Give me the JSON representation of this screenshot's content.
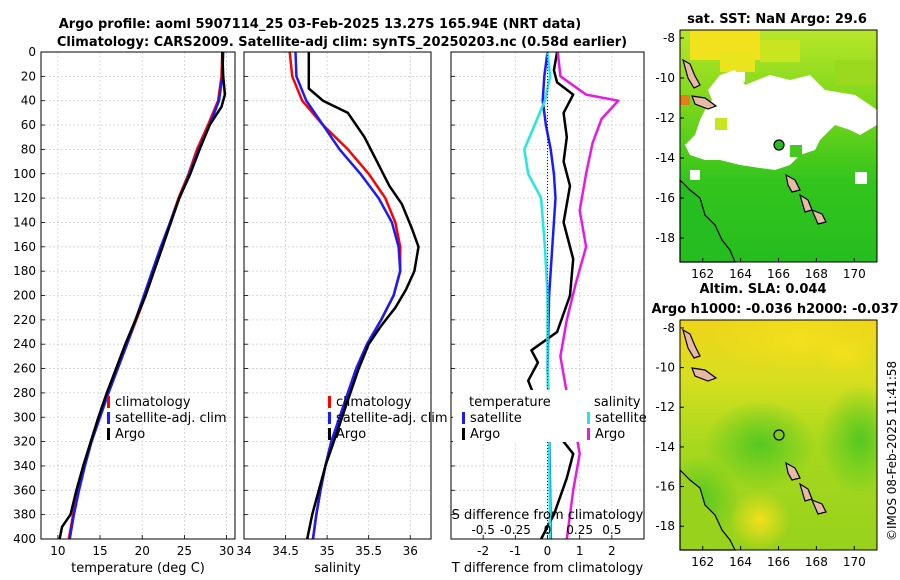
{
  "header": {
    "title_line1": "Argo profile: aoml 5907114_25 03-Feb-2025 13.27S 165.94E (NRT data)",
    "title_line2": "Climatology: CARS2009. Satellite-adj clim: synTS_20250203.nc (0.58d earlier)"
  },
  "watermark": "©IMOS 08-Feb-2025 11:41:58",
  "colors": {
    "clim": "#ff0000",
    "sat": "#1a1aff",
    "argo": "#000000",
    "sat_s": "#22e6e6",
    "argo_s": "#e619e6",
    "land": "#e8b9a3"
  },
  "chart_data": [
    {
      "type": "line",
      "panel": "temperature",
      "xlabel": "temperature (deg C)",
      "ylabel": "",
      "xlim": [
        8,
        31
      ],
      "ylim": [
        400,
        0
      ],
      "xticks": [
        10,
        15,
        20,
        25,
        30
      ],
      "yticks": [
        0,
        20,
        40,
        60,
        80,
        100,
        120,
        140,
        160,
        180,
        200,
        220,
        240,
        260,
        280,
        300,
        320,
        340,
        360,
        380,
        400
      ],
      "legend": [
        "climatology",
        "satellite-adj. clim",
        "Argo"
      ],
      "series": [
        {
          "name": "climatology",
          "color": "#ff0000",
          "points": [
            [
              29.5,
              0
            ],
            [
              29.4,
              20
            ],
            [
              29.0,
              40
            ],
            [
              27.8,
              60
            ],
            [
              26.5,
              80
            ],
            [
              25.5,
              100
            ],
            [
              24.3,
              120
            ],
            [
              23.3,
              140
            ],
            [
              22.4,
              160
            ],
            [
              21.4,
              180
            ],
            [
              20.4,
              200
            ],
            [
              19.3,
              220
            ],
            [
              18.2,
              240
            ],
            [
              17.0,
              260
            ],
            [
              15.9,
              280
            ],
            [
              14.9,
              300
            ],
            [
              13.9,
              320
            ],
            [
              13.1,
              340
            ],
            [
              12.4,
              360
            ],
            [
              11.8,
              380
            ],
            [
              11.3,
              400
            ]
          ]
        },
        {
          "name": "satellite-adj. clim",
          "color": "#1a1aff",
          "points": [
            [
              29.6,
              0
            ],
            [
              29.5,
              20
            ],
            [
              29.1,
              40
            ],
            [
              28.0,
              60
            ],
            [
              26.7,
              80
            ],
            [
              25.6,
              100
            ],
            [
              24.4,
              120
            ],
            [
              23.3,
              140
            ],
            [
              22.2,
              160
            ],
            [
              21.2,
              180
            ],
            [
              20.2,
              200
            ],
            [
              19.2,
              220
            ],
            [
              18.2,
              240
            ],
            [
              17.1,
              260
            ],
            [
              16.0,
              280
            ],
            [
              15.0,
              300
            ],
            [
              14.0,
              320
            ],
            [
              13.2,
              340
            ],
            [
              12.5,
              360
            ],
            [
              11.9,
              380
            ],
            [
              11.4,
              400
            ]
          ]
        },
        {
          "name": "Argo",
          "color": "#000000",
          "points": [
            [
              29.5,
              0
            ],
            [
              29.6,
              20
            ],
            [
              29.8,
              35
            ],
            [
              29.4,
              45
            ],
            [
              28.0,
              60
            ],
            [
              26.8,
              80
            ],
            [
              25.7,
              100
            ],
            [
              24.4,
              120
            ],
            [
              23.4,
              140
            ],
            [
              22.4,
              160
            ],
            [
              21.4,
              180
            ],
            [
              20.4,
              200
            ],
            [
              19.2,
              220
            ],
            [
              18.0,
              240
            ],
            [
              16.9,
              260
            ],
            [
              15.8,
              280
            ],
            [
              14.8,
              300
            ],
            [
              13.9,
              320
            ],
            [
              13.0,
              340
            ],
            [
              12.2,
              360
            ],
            [
              11.5,
              380
            ],
            [
              10.5,
              390
            ],
            [
              10.2,
              400
            ]
          ]
        }
      ]
    },
    {
      "type": "line",
      "panel": "salinity",
      "xlabel": "salinity",
      "ylabel": "",
      "xlim": [
        34.0,
        36.25
      ],
      "ylim": [
        400,
        0
      ],
      "xticks": [
        34,
        34.5,
        35,
        35.5,
        36
      ],
      "xtick_labels": [
        "34",
        "34.5",
        "35",
        "35.5",
        "36"
      ],
      "legend": [
        "climatology",
        "satellite-adj. clim",
        "Argo"
      ],
      "series": [
        {
          "name": "climatology",
          "color": "#ff0000",
          "points": [
            [
              34.55,
              0
            ],
            [
              34.58,
              20
            ],
            [
              34.7,
              40
            ],
            [
              34.95,
              60
            ],
            [
              35.25,
              80
            ],
            [
              35.5,
              100
            ],
            [
              35.7,
              120
            ],
            [
              35.82,
              140
            ],
            [
              35.88,
              160
            ],
            [
              35.88,
              180
            ],
            [
              35.8,
              200
            ],
            [
              35.65,
              220
            ],
            [
              35.48,
              240
            ],
            [
              35.35,
              260
            ],
            [
              35.25,
              280
            ],
            [
              35.15,
              300
            ],
            [
              35.05,
              320
            ],
            [
              34.98,
              340
            ],
            [
              34.92,
              360
            ],
            [
              34.87,
              380
            ],
            [
              34.83,
              400
            ]
          ]
        },
        {
          "name": "satellite-adj. clim",
          "color": "#1a1aff",
          "points": [
            [
              34.62,
              0
            ],
            [
              34.63,
              20
            ],
            [
              34.75,
              40
            ],
            [
              34.95,
              60
            ],
            [
              35.15,
              80
            ],
            [
              35.4,
              100
            ],
            [
              35.62,
              120
            ],
            [
              35.78,
              140
            ],
            [
              35.86,
              160
            ],
            [
              35.88,
              180
            ],
            [
              35.8,
              200
            ],
            [
              35.65,
              220
            ],
            [
              35.48,
              240
            ],
            [
              35.35,
              260
            ],
            [
              35.25,
              280
            ],
            [
              35.15,
              300
            ],
            [
              35.05,
              320
            ],
            [
              34.98,
              340
            ],
            [
              34.92,
              360
            ],
            [
              34.87,
              380
            ],
            [
              34.83,
              400
            ]
          ]
        },
        {
          "name": "Argo",
          "color": "#000000",
          "points": [
            [
              34.78,
              0
            ],
            [
              34.78,
              30
            ],
            [
              34.95,
              40
            ],
            [
              35.25,
              50
            ],
            [
              35.45,
              70
            ],
            [
              35.6,
              90
            ],
            [
              35.75,
              110
            ],
            [
              35.9,
              125
            ],
            [
              36.02,
              145
            ],
            [
              36.1,
              160
            ],
            [
              36.05,
              180
            ],
            [
              35.95,
              195
            ],
            [
              35.82,
              210
            ],
            [
              35.65,
              225
            ],
            [
              35.5,
              240
            ],
            [
              35.38,
              260
            ],
            [
              35.28,
              280
            ],
            [
              35.18,
              300
            ],
            [
              35.08,
              320
            ],
            [
              34.98,
              340
            ],
            [
              34.9,
              360
            ],
            [
              34.82,
              380
            ],
            [
              34.76,
              400
            ]
          ]
        }
      ]
    },
    {
      "type": "line",
      "panel": "differences",
      "xlabel": "T difference from climatology",
      "xlabel_top": "S difference from climatology",
      "xlim": [
        -3,
        3
      ],
      "ylim": [
        400,
        0
      ],
      "xticks": [
        -2,
        -1,
        0,
        1,
        2
      ],
      "xtick_labels": [
        "-2",
        "-1",
        "0",
        "1",
        "2"
      ],
      "xticks_s": [
        -0.5,
        -0.25,
        0,
        0.25,
        0.5
      ],
      "xtick_labels_s": [
        "-0.5",
        "-0.25",
        "0",
        "0.25",
        "0.5"
      ],
      "s_scale": 4,
      "legend_t_title": "temperature",
      "legend_s_title": "salinity",
      "legend_t": [
        "satellite",
        "Argo"
      ],
      "legend_s": [
        "satellite",
        "Argo"
      ],
      "series": [
        {
          "name": "T satellite",
          "color": "#1a1aff",
          "points": [
            [
              0,
              0
            ],
            [
              -0.1,
              20
            ],
            [
              -0.15,
              40
            ],
            [
              -0.05,
              60
            ],
            [
              0.1,
              80
            ],
            [
              0.2,
              100
            ],
            [
              0.25,
              120
            ],
            [
              0.15,
              160
            ],
            [
              0.05,
              200
            ],
            [
              0.0,
              260
            ],
            [
              0.05,
              300
            ],
            [
              0.1,
              400
            ]
          ]
        },
        {
          "name": "T Argo",
          "color": "#000000",
          "points": [
            [
              0.3,
              0
            ],
            [
              0.2,
              15
            ],
            [
              0.3,
              25
            ],
            [
              0.8,
              35
            ],
            [
              0.5,
              50
            ],
            [
              0.6,
              70
            ],
            [
              0.5,
              90
            ],
            [
              0.7,
              110
            ],
            [
              0.5,
              140
            ],
            [
              0.8,
              170
            ],
            [
              0.7,
              200
            ],
            [
              0.3,
              230
            ],
            [
              -0.5,
              245
            ],
            [
              -0.3,
              255
            ],
            [
              -0.6,
              270
            ],
            [
              -0.3,
              290
            ],
            [
              0.2,
              310
            ],
            [
              0.8,
              330
            ],
            [
              0.6,
              350
            ],
            [
              0.2,
              380
            ],
            [
              -0.2,
              400
            ]
          ]
        },
        {
          "name": "S satellite",
          "color": "#22e6e6",
          "points": [
            [
              0,
              0
            ],
            [
              0.02,
              20
            ],
            [
              -0.02,
              40
            ],
            [
              -0.1,
              60
            ],
            [
              -0.18,
              80
            ],
            [
              -0.15,
              100
            ],
            [
              -0.05,
              120
            ],
            [
              -0.02,
              160
            ],
            [
              0,
              200
            ],
            [
              0,
              260
            ],
            [
              0.01,
              300
            ],
            [
              0.02,
              400
            ]
          ]
        },
        {
          "name": "S Argo",
          "color": "#e619e6",
          "points": [
            [
              0.08,
              0
            ],
            [
              0.1,
              20
            ],
            [
              0.3,
              35
            ],
            [
              0.55,
              40
            ],
            [
              0.42,
              55
            ],
            [
              0.35,
              75
            ],
            [
              0.3,
              100
            ],
            [
              0.25,
              130
            ],
            [
              0.3,
              160
            ],
            [
              0.22,
              190
            ],
            [
              0.15,
              220
            ],
            [
              0.1,
              250
            ],
            [
              0.15,
              280
            ],
            [
              0.2,
              300
            ],
            [
              0.25,
              330
            ],
            [
              0.2,
              360
            ],
            [
              0.15,
              400
            ]
          ]
        }
      ]
    },
    {
      "type": "heatmap",
      "panel": "sst_map",
      "title": "sat. SST: NaN Argo: 29.6",
      "xticks": [
        162,
        164,
        166,
        168,
        170
      ],
      "yticks": [
        -8,
        -10,
        -12,
        -14,
        -16,
        -18
      ],
      "xlim": [
        160.8,
        171.2
      ],
      "ylim": [
        -19.2,
        -7.6
      ],
      "argo_position": [
        165.94,
        -13.27
      ]
    },
    {
      "type": "heatmap",
      "panel": "sla_map",
      "title_line1": "Altim. SLA: 0.044",
      "title_line2": "Argo h1000: -0.036 h2000: -0.037",
      "xticks": [
        162,
        164,
        166,
        168,
        170
      ],
      "yticks": [
        -8,
        -10,
        -12,
        -14,
        -16,
        -18
      ],
      "xlim": [
        160.8,
        171.2
      ],
      "ylim": [
        -19.2,
        -7.6
      ],
      "argo_position": [
        165.94,
        -13.27
      ]
    }
  ]
}
